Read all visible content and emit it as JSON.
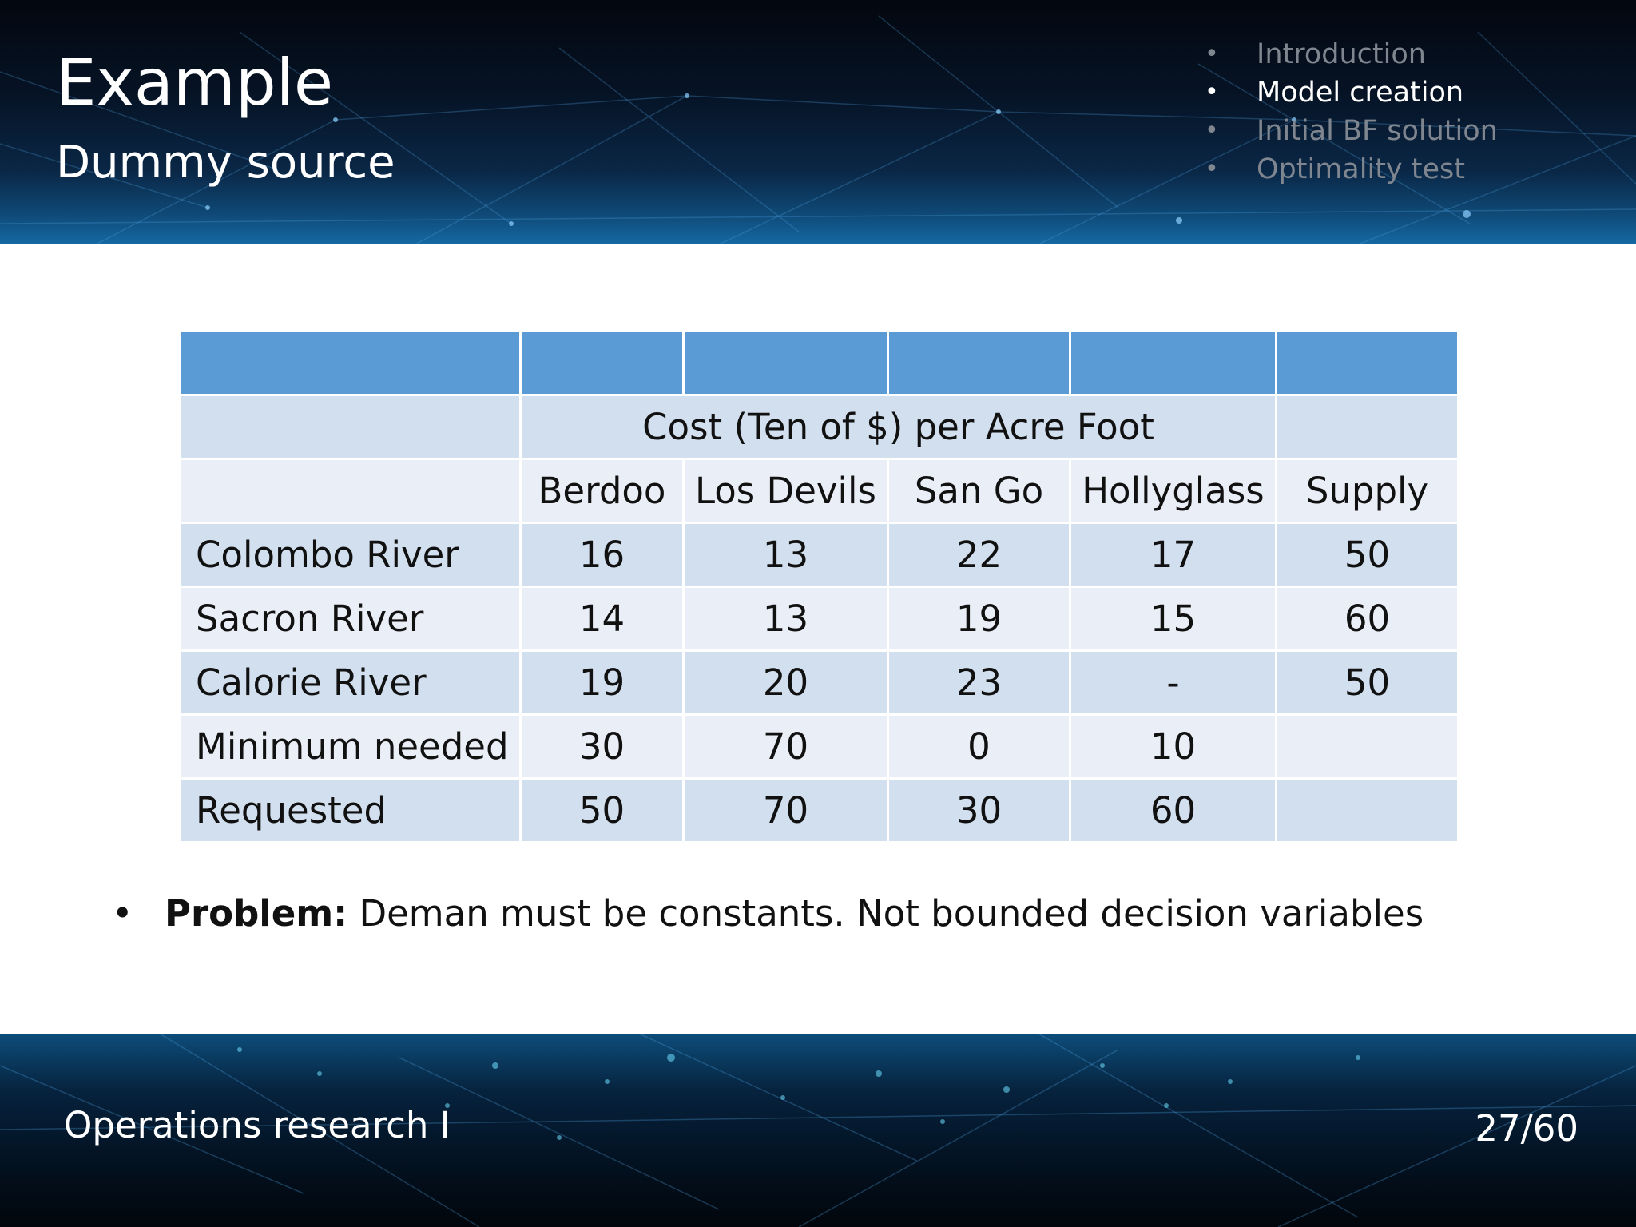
{
  "slide": {
    "title": "Example",
    "subtitle": "Dummy source"
  },
  "agenda": [
    {
      "label": "Introduction",
      "active": false
    },
    {
      "label": "Model creation",
      "active": true
    },
    {
      "label": "Initial BF solution",
      "active": false
    },
    {
      "label": "Optimality test",
      "active": false
    }
  ],
  "table": {
    "group_header": "Cost (Ten of $) per Acre Foot",
    "columns": [
      "Berdoo",
      "Los Devils",
      "San Go",
      "Hollyglass",
      "Supply"
    ],
    "rows": [
      {
        "label": "Colombo River",
        "cells": [
          "16",
          "13",
          "22",
          "17",
          "50"
        ]
      },
      {
        "label": "Sacron River",
        "cells": [
          "14",
          "13",
          "19",
          "15",
          "60"
        ]
      },
      {
        "label": "Calorie River",
        "cells": [
          "19",
          "20",
          "23",
          "-",
          "50"
        ]
      },
      {
        "label": "Minimum needed",
        "cells": [
          "30",
          "70",
          "0",
          "10",
          ""
        ]
      },
      {
        "label": "Requested",
        "cells": [
          "50",
          "70",
          "30",
          "60",
          ""
        ]
      }
    ]
  },
  "note": {
    "bullet": "•",
    "bold": "Problem:",
    "text": " Deman must be constants. Not bounded decision variables"
  },
  "footer": {
    "course": "Operations research I",
    "page": "27/60"
  },
  "colors": {
    "band": "#5b9bd5",
    "row_dark": "#d2dfee",
    "row_light": "#eaeff7"
  }
}
